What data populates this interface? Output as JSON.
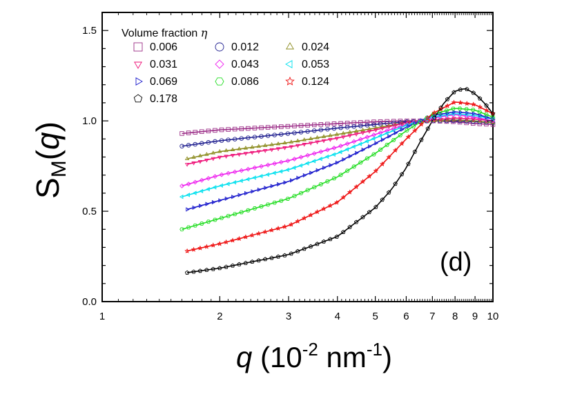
{
  "chart_data": {
    "type": "scatter",
    "panel_label": "(d)",
    "xscale": "log",
    "xlim": [
      1,
      10
    ],
    "ylim": [
      0.0,
      1.6
    ],
    "x_tick_labels": [
      "1",
      "2",
      "3",
      "4",
      "5",
      "6",
      "7",
      "8",
      "9",
      "10"
    ],
    "y_tick_labels": [
      "0.0",
      "0.5",
      "1.0",
      "1.5"
    ],
    "xlabel": {
      "q": "q",
      "unit_open": "(10",
      "exp1": "-2",
      "unit_mid": "nm",
      "exp2": "-1",
      "unit_close": ")"
    },
    "ylabel": {
      "S": "S",
      "sub": "M",
      "arg_open": "(",
      "q": "q",
      "arg_close": ")"
    },
    "legend": {
      "title": "Volume fraction",
      "title_symbol": "η",
      "placement": "top-left"
    },
    "series": [
      {
        "name": "0.006",
        "color": "#9b2d87",
        "marker": "square",
        "x": [
          1.6,
          2.0,
          3.0,
          4.0,
          5.0,
          6.0,
          7.0,
          8.0,
          9.0,
          10.0
        ],
        "y": [
          0.93,
          0.95,
          0.97,
          0.985,
          0.995,
          1.0,
          1.0,
          0.995,
          0.985,
          0.98
        ]
      },
      {
        "name": "0.012",
        "color": "#1f1f8f",
        "marker": "circle",
        "x": [
          1.6,
          2.0,
          3.0,
          4.0,
          5.0,
          6.0,
          7.0,
          8.0,
          9.0,
          10.0
        ],
        "y": [
          0.86,
          0.89,
          0.93,
          0.96,
          0.98,
          0.995,
          1.0,
          1.0,
          0.995,
          0.99
        ]
      },
      {
        "name": "0.024",
        "color": "#8b8b1e",
        "marker": "triangle-up",
        "x": [
          1.65,
          2.0,
          3.0,
          4.0,
          5.0,
          6.0,
          7.0,
          8.0,
          9.0,
          10.0
        ],
        "y": [
          0.79,
          0.83,
          0.88,
          0.925,
          0.96,
          0.99,
          1.0,
          1.005,
          1.0,
          0.99
        ]
      },
      {
        "name": "0.031",
        "color": "#ee1177",
        "marker": "triangle-down",
        "x": [
          1.65,
          2.0,
          3.0,
          4.0,
          5.0,
          6.0,
          7.0,
          8.0,
          9.0,
          10.0
        ],
        "y": [
          0.76,
          0.8,
          0.855,
          0.905,
          0.95,
          0.99,
          1.005,
          1.015,
          1.01,
          1.0
        ]
      },
      {
        "name": "0.043",
        "color": "#ee22ee",
        "marker": "diamond",
        "x": [
          1.6,
          2.0,
          3.0,
          4.0,
          5.0,
          6.0,
          7.0,
          8.0,
          9.0,
          10.0
        ],
        "y": [
          0.64,
          0.7,
          0.78,
          0.855,
          0.925,
          0.98,
          1.015,
          1.035,
          1.02,
          1.0
        ]
      },
      {
        "name": "0.053",
        "color": "#00e0ee",
        "marker": "triangle-left",
        "x": [
          1.6,
          2.0,
          3.0,
          4.0,
          5.0,
          6.0,
          7.0,
          8.0,
          9.0,
          10.0
        ],
        "y": [
          0.58,
          0.64,
          0.73,
          0.82,
          0.905,
          0.975,
          1.02,
          1.04,
          1.03,
          1.01
        ]
      },
      {
        "name": "0.069",
        "color": "#1a1acc",
        "marker": "triangle-right",
        "x": [
          1.65,
          2.0,
          3.0,
          4.0,
          5.0,
          6.0,
          7.0,
          8.0,
          9.0,
          10.0
        ],
        "y": [
          0.51,
          0.56,
          0.665,
          0.77,
          0.875,
          0.965,
          1.03,
          1.05,
          1.04,
          1.01
        ]
      },
      {
        "name": "0.086",
        "color": "#22dd22",
        "marker": "hexagon",
        "x": [
          1.6,
          2.0,
          3.0,
          4.0,
          5.0,
          6.0,
          7.0,
          8.0,
          9.0,
          10.0
        ],
        "y": [
          0.4,
          0.46,
          0.57,
          0.69,
          0.82,
          0.945,
          1.035,
          1.07,
          1.06,
          1.02
        ]
      },
      {
        "name": "0.124",
        "color": "#ee1111",
        "marker": "star",
        "x": [
          1.65,
          2.0,
          3.0,
          4.0,
          5.0,
          6.0,
          7.0,
          8.0,
          9.0,
          10.0
        ],
        "y": [
          0.28,
          0.32,
          0.42,
          0.55,
          0.72,
          0.9,
          1.04,
          1.105,
          1.09,
          1.04
        ]
      },
      {
        "name": "0.178",
        "color": "#000000",
        "marker": "pentagon",
        "x": [
          1.65,
          2.0,
          3.0,
          4.0,
          5.0,
          5.5,
          6.0,
          6.5,
          7.0,
          7.5,
          8.0,
          8.5,
          9.0,
          9.5,
          10.0
        ],
        "y": [
          0.16,
          0.185,
          0.26,
          0.36,
          0.52,
          0.62,
          0.74,
          0.88,
          1.0,
          1.1,
          1.165,
          1.18,
          1.15,
          1.1,
          1.04
        ]
      }
    ]
  }
}
